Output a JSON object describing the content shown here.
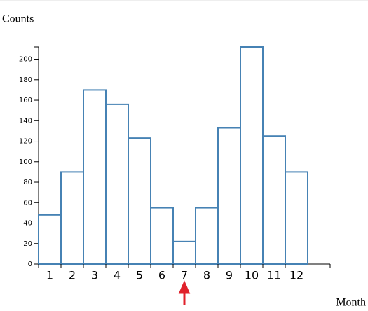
{
  "chart_data": {
    "type": "bar",
    "y_label": "Counts",
    "x_label": "Month",
    "categories": [
      "1",
      "2",
      "3",
      "4",
      "5",
      "6",
      "7",
      "8",
      "9",
      "10",
      "11",
      "12"
    ],
    "values": [
      48,
      90,
      170,
      156,
      123,
      55,
      22,
      55,
      133,
      212,
      125,
      90
    ],
    "color": "#4682b4",
    "ylim": [
      0,
      212
    ],
    "yticks": [
      0,
      20,
      40,
      60,
      80,
      100,
      120,
      140,
      160,
      180,
      200
    ],
    "grid": false
  }
}
